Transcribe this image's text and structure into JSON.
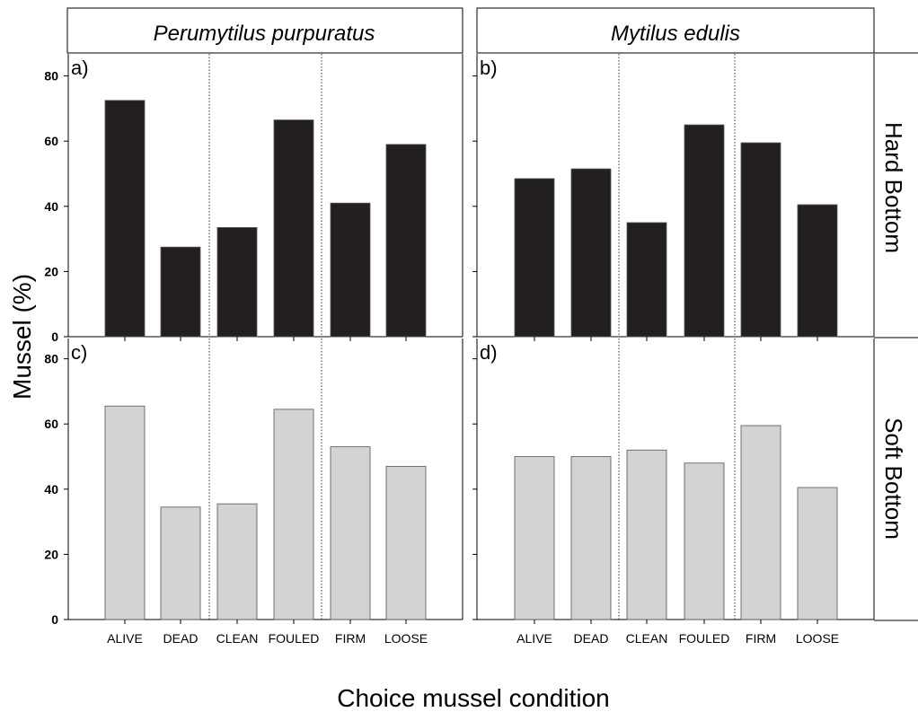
{
  "figure": {
    "ylabel": "Mussel (%)",
    "xlabel": "Choice mussel condition",
    "column_titles": [
      "Perumytilus purpuratus",
      "Mytilus edulis"
    ],
    "row_titles": [
      "Hard Bottom",
      "Soft Bottom"
    ],
    "colors": {
      "hard_bar": "#231f20",
      "soft_bar": "#d1d3d4",
      "axis": "#000000"
    }
  },
  "chart_data": [
    {
      "type": "bar",
      "panel": "a)",
      "species": "Perumytilus purpuratus",
      "bottom": "Hard Bottom",
      "categories": [
        "ALIVE",
        "DEAD",
        "CLEAN",
        "FOULED",
        "FIRM",
        "LOOSE"
      ],
      "values": [
        72.5,
        27.5,
        33.5,
        66.5,
        41,
        59
      ],
      "ylim": [
        0,
        87
      ],
      "yticks": [
        0,
        20,
        40,
        60,
        80
      ]
    },
    {
      "type": "bar",
      "panel": "b)",
      "species": "Mytilus edulis",
      "bottom": "Hard Bottom",
      "categories": [
        "ALIVE",
        "DEAD",
        "CLEAN",
        "FOULED",
        "FIRM",
        "LOOSE"
      ],
      "values": [
        48.5,
        51.5,
        35,
        65,
        59.5,
        40.5
      ],
      "ylim": [
        0,
        87
      ],
      "yticks": [
        0,
        20,
        40,
        60,
        80
      ]
    },
    {
      "type": "bar",
      "panel": "c)",
      "species": "Perumytilus purpuratus",
      "bottom": "Soft Bottom",
      "categories": [
        "ALIVE",
        "DEAD",
        "CLEAN",
        "FOULED",
        "FIRM",
        "LOOSE"
      ],
      "values": [
        65.5,
        34.5,
        35.5,
        64.5,
        53,
        47
      ],
      "ylim": [
        0,
        87
      ],
      "yticks": [
        0,
        20,
        40,
        60,
        80
      ]
    },
    {
      "type": "bar",
      "panel": "d)",
      "species": "Mytilus edulis",
      "bottom": "Soft Bottom",
      "categories": [
        "ALIVE",
        "DEAD",
        "CLEAN",
        "FOULED",
        "FIRM",
        "LOOSE"
      ],
      "values": [
        50,
        50,
        52,
        48,
        59.5,
        40.5
      ],
      "ylim": [
        0,
        87
      ],
      "yticks": [
        0,
        20,
        40,
        60,
        80
      ]
    }
  ]
}
